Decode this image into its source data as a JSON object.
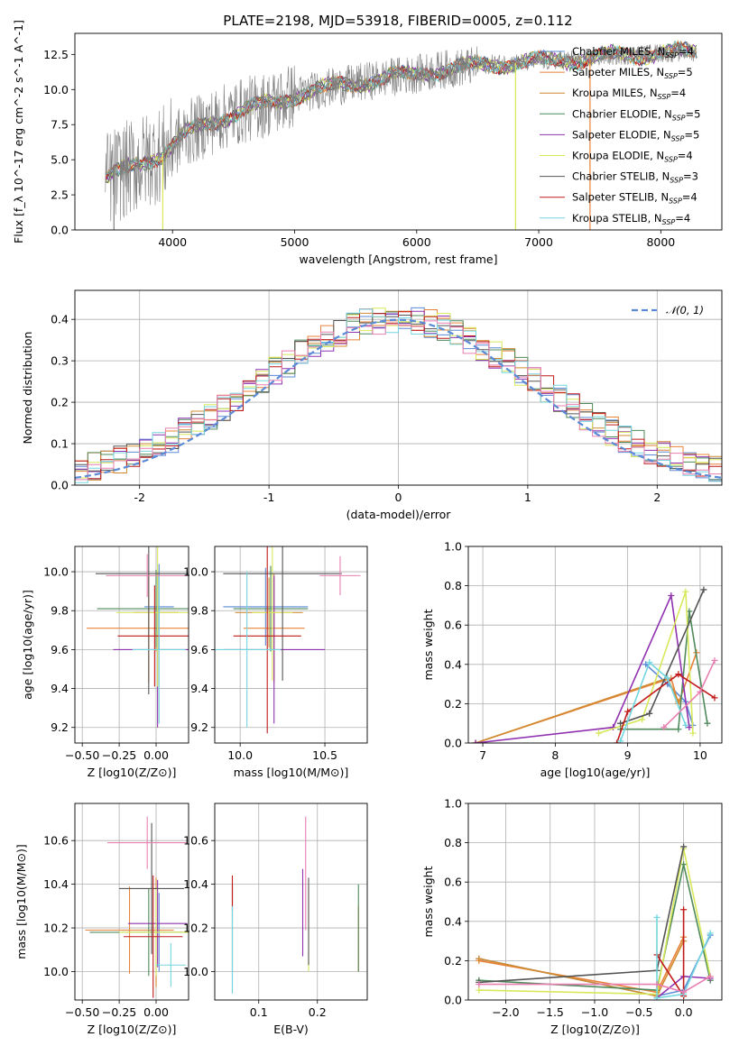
{
  "title": "PLATE=2198, MJD=53918, FIBERID=0005, z=0.112",
  "colors": {
    "Chabrier MILES": "#5b8ad6",
    "Salpeter MILES": "#e8833a",
    "Kroupa MILES": "#d08a30",
    "Chabrier ELODIE": "#4f8a5b",
    "Salpeter ELODIE": "#9032b0",
    "Kroupa ELODIE": "#d7e85a",
    "Chabrier STELIB": "#555555",
    "Salpeter STELIB": "#c01a1a",
    "Kroupa STELIB": "#73d6e0",
    "extra": "#e87fb0",
    "spectrum": "#808080",
    "normal": "#5b8ad6"
  },
  "chart_data": [
    {
      "type": "line",
      "name": "spectrum",
      "xlabel": "wavelength [Angstrom, rest frame]",
      "ylabel": "Flux [f_λ 10^-17 erg cm^-2 s^-1 A^-1]",
      "xlim": [
        3200,
        8500
      ],
      "ylim": [
        0,
        14
      ],
      "xticks": [
        4000,
        5000,
        6000,
        7000,
        8000
      ],
      "yticks": [
        0.0,
        2.5,
        5.0,
        7.5,
        10.0,
        12.5
      ],
      "ytick_labels": [
        "0.0",
        "2.5",
        "5.0",
        "7.5",
        "10.0",
        "12.5"
      ],
      "legend_position": "top-right",
      "legend": [
        {
          "label": "Chabrier MILES, N",
          "sub": "SSP",
          "tail": "=4",
          "key": "Chabrier MILES"
        },
        {
          "label": "Salpeter MILES, N",
          "sub": "SSP",
          "tail": "=5",
          "key": "Salpeter MILES"
        },
        {
          "label": "Kroupa MILES, N",
          "sub": "SSP",
          "tail": "=4",
          "key": "Kroupa MILES"
        },
        {
          "label": "Chabrier ELODIE, N",
          "sub": "SSP",
          "tail": "=5",
          "key": "Chabrier ELODIE"
        },
        {
          "label": "Salpeter ELODIE, N",
          "sub": "SSP",
          "tail": "=5",
          "key": "Salpeter ELODIE"
        },
        {
          "label": "Kroupa ELODIE, N",
          "sub": "SSP",
          "tail": "=4",
          "key": "Kroupa ELODIE"
        },
        {
          "label": "Chabrier STELIB, N",
          "sub": "SSP",
          "tail": "=3",
          "key": "Chabrier STELIB"
        },
        {
          "label": "Salpeter STELIB, N",
          "sub": "SSP",
          "tail": "=4",
          "key": "Salpeter STELIB"
        },
        {
          "label": "Kroupa STELIB, N",
          "sub": "SSP",
          "tail": "=4",
          "key": "Kroupa STELIB"
        }
      ],
      "continuum": [
        [
          3450,
          3.6
        ],
        [
          3600,
          4.2
        ],
        [
          3800,
          5.0
        ],
        [
          3950,
          5.6
        ],
        [
          4100,
          6.8
        ],
        [
          4300,
          7.6
        ],
        [
          4500,
          8.3
        ],
        [
          4700,
          8.8
        ],
        [
          4860,
          9.1
        ],
        [
          5000,
          9.6
        ],
        [
          5200,
          10.0
        ],
        [
          5400,
          10.3
        ],
        [
          5600,
          10.6
        ],
        [
          5800,
          10.9
        ],
        [
          6000,
          11.1
        ],
        [
          6200,
          11.4
        ],
        [
          6400,
          11.6
        ],
        [
          6600,
          11.8
        ],
        [
          6800,
          11.9
        ],
        [
          7000,
          12.0
        ],
        [
          7200,
          12.1
        ],
        [
          7400,
          12.2
        ],
        [
          7600,
          12.4
        ],
        [
          7800,
          12.5
        ],
        [
          8000,
          12.6
        ],
        [
          8300,
          12.7
        ]
      ]
    },
    {
      "type": "line",
      "name": "residuals",
      "xlabel": "(data-model)/error",
      "ylabel": "Normed distribution",
      "xlim": [
        -2.5,
        2.5
      ],
      "ylim": [
        0,
        0.47
      ],
      "xticks": [
        -2,
        -1,
        0,
        1,
        2
      ],
      "yticks": [
        0.0,
        0.1,
        0.2,
        0.3,
        0.4
      ],
      "ytick_labels": [
        "0.0",
        "0.1",
        "0.2",
        "0.3",
        "0.4"
      ],
      "legend": "𝒩(0, 1)",
      "legend_position": "top-right",
      "grid": true
    },
    {
      "type": "scatter",
      "name": "age vs Z",
      "xlabel": "Z [log10(Z/Z⊙)]",
      "ylabel": "age [log10(age/yr)]",
      "xlim": [
        -0.55,
        0.22
      ],
      "ylim": [
        9.12,
        10.13
      ],
      "xticks": [
        -0.5,
        -0.25,
        0.0
      ],
      "xtick_labels": [
        "−0.50",
        "−0.25",
        "0.00"
      ],
      "yticks": [
        9.2,
        9.4,
        9.6,
        9.8,
        10.0
      ],
      "ytick_labels": [
        "9.2",
        "9.4",
        "9.6",
        "9.8",
        "10.0"
      ],
      "grid": true,
      "points": [
        {
          "m": "Chabrier MILES",
          "x": 0.02,
          "y": 9.82,
          "xe": 0.1,
          "ye": 0.22
        },
        {
          "m": "Salpeter MILES",
          "x": -0.05,
          "y": 9.71,
          "xe": 0.42,
          "ye": 0.28
        },
        {
          "m": "Kroupa MILES",
          "x": 0.0,
          "y": 9.79,
          "xe": 0.15,
          "ye": 0.2
        },
        {
          "m": "Chabrier ELODIE",
          "x": 0.0,
          "y": 9.81,
          "xe": 0.4,
          "ye": 0.2
        },
        {
          "m": "Salpeter ELODIE",
          "x": 0.01,
          "y": 9.6,
          "xe": 0.3,
          "ye": 0.4
        },
        {
          "m": "Kroupa ELODIE",
          "x": 0.01,
          "y": 9.79,
          "xe": 0.28,
          "ye": 0.38
        },
        {
          "m": "Chabrier STELIB",
          "x": -0.05,
          "y": 9.99,
          "xe": 0.36,
          "ye": 0.62
        },
        {
          "m": "Salpeter STELIB",
          "x": -0.01,
          "y": 9.67,
          "xe": 0.25,
          "ye": 0.26
        },
        {
          "m": "Kroupa STELIB",
          "x": 0.02,
          "y": 9.6,
          "xe": 0.18,
          "ye": 0.38
        },
        {
          "m": "extra",
          "x": -0.06,
          "y": 9.98,
          "xe": 0.28,
          "ye": 0.11
        }
      ]
    },
    {
      "type": "scatter",
      "name": "age vs mass",
      "xlabel": "mass [log10(M/M⊙)]",
      "ylabel": "",
      "xlim": [
        9.85,
        10.75
      ],
      "ylim": [
        9.12,
        10.13
      ],
      "xticks": [
        10.0,
        10.5
      ],
      "xtick_labels": [
        "10.0",
        "10.5"
      ],
      "yticks": [
        9.2,
        9.4,
        9.6,
        9.8,
        10.0
      ],
      "ytick_labels": [
        "9.2",
        "9.4",
        "9.6",
        "9.8",
        "10.0"
      ],
      "grid": true,
      "points": [
        {
          "m": "Chabrier MILES",
          "x": 10.15,
          "y": 9.82,
          "xe": 0.25,
          "ye": 0.2
        },
        {
          "m": "Salpeter MILES",
          "x": 10.2,
          "y": 9.71,
          "xe": 0.18,
          "ye": 0.28
        },
        {
          "m": "Kroupa MILES",
          "x": 10.17,
          "y": 9.79,
          "xe": 0.2,
          "ye": 0.18
        },
        {
          "m": "Chabrier ELODIE",
          "x": 10.18,
          "y": 9.81,
          "xe": 0.22,
          "ye": 0.22
        },
        {
          "m": "Salpeter ELODIE",
          "x": 10.2,
          "y": 9.6,
          "xe": 0.3,
          "ye": 0.38
        },
        {
          "m": "Kroupa ELODIE",
          "x": 10.19,
          "y": 9.79,
          "xe": 0.12,
          "ye": 0.35
        },
        {
          "m": "Chabrier STELIB",
          "x": 10.25,
          "y": 9.99,
          "xe": 0.35,
          "ye": 0.55
        },
        {
          "m": "Salpeter STELIB",
          "x": 10.16,
          "y": 9.67,
          "xe": 0.2,
          "ye": 0.5
        },
        {
          "m": "Kroupa STELIB",
          "x": 10.04,
          "y": 9.6,
          "xe": 0.2,
          "ye": 0.4
        },
        {
          "m": "extra",
          "x": 10.59,
          "y": 9.98,
          "xe": 0.12,
          "ye": 0.1
        }
      ]
    },
    {
      "type": "line",
      "name": "mass weight vs age",
      "xlabel": "age [log10(age/yr)]",
      "ylabel": "mass weight",
      "xlim": [
        6.8,
        10.3
      ],
      "ylim": [
        0,
        1.0
      ],
      "xticks": [
        7,
        8,
        9,
        10
      ],
      "xtick_labels": [
        "7",
        "8",
        "9",
        "10"
      ],
      "yticks": [
        0.0,
        0.2,
        0.4,
        0.6,
        0.8,
        1.0
      ],
      "ytick_labels": [
        "0.0",
        "0.2",
        "0.4",
        "0.6",
        "0.8",
        "1.0"
      ],
      "grid": true,
      "series": [
        {
          "m": "Chabrier MILES",
          "x": [
            9.25,
            9.55,
            9.8,
            9.9
          ],
          "y": [
            0.4,
            0.3,
            0.21,
            0.09
          ]
        },
        {
          "m": "Salpeter MILES",
          "x": [
            6.9,
            9.6,
            9.7,
            9.95
          ],
          "y": [
            0.0,
            0.33,
            0.2,
            0.46
          ]
        },
        {
          "m": "Kroupa MILES",
          "x": [
            6.9,
            9.55,
            9.7
          ],
          "y": [
            0.0,
            0.33,
            0.21
          ]
        },
        {
          "m": "Chabrier ELODIE",
          "x": [
            8.9,
            9.7,
            9.85,
            10.1
          ],
          "y": [
            0.07,
            0.07,
            0.67,
            0.1
          ]
        },
        {
          "m": "Salpeter ELODIE",
          "x": [
            6.9,
            8.8,
            9.6,
            9.85
          ],
          "y": [
            0.0,
            0.08,
            0.75,
            0.08
          ]
        },
        {
          "m": "Kroupa ELODIE",
          "x": [
            8.6,
            9.2,
            9.8,
            9.9
          ],
          "y": [
            0.05,
            0.12,
            0.77,
            0.05
          ]
        },
        {
          "m": "Chabrier STELIB",
          "x": [
            8.9,
            9.3,
            10.05
          ],
          "y": [
            0.1,
            0.15,
            0.78
          ]
        },
        {
          "m": "Salpeter STELIB",
          "x": [
            8.85,
            9.0,
            9.7,
            10.2
          ],
          "y": [
            0.0,
            0.16,
            0.35,
            0.23
          ]
        },
        {
          "m": "Kroupa STELIB",
          "x": [
            8.9,
            9.3,
            9.55,
            9.8
          ],
          "y": [
            0.01,
            0.41,
            0.33,
            0.09
          ]
        },
        {
          "m": "extra",
          "x": [
            9.5,
            10.0,
            10.2
          ],
          "y": [
            0.08,
            0.26,
            0.42
          ]
        }
      ]
    },
    {
      "type": "scatter",
      "name": "mass vs Z",
      "xlabel": "Z [log10(Z/Z⊙)]",
      "ylabel": "mass [log10(M/M⊙)]",
      "xlim": [
        -0.55,
        0.22
      ],
      "ylim": [
        9.87,
        10.77
      ],
      "xticks": [
        -0.5,
        -0.25,
        0.0
      ],
      "xtick_labels": [
        "−0.50",
        "−0.25",
        "0.00"
      ],
      "yticks": [
        10.0,
        10.2,
        10.4,
        10.6
      ],
      "ytick_labels": [
        "10.0",
        "10.2",
        "10.4",
        "10.6"
      ],
      "grid": true,
      "points": [
        {
          "m": "Chabrier MILES",
          "x": 0.02,
          "y": 10.18,
          "xe": 0.1,
          "ye": 0.18
        },
        {
          "m": "Salpeter MILES",
          "x": -0.18,
          "y": 10.19,
          "xe": 0.3,
          "ye": 0.2
        },
        {
          "m": "Kroupa MILES",
          "x": 0.0,
          "y": 10.18,
          "xe": 0.2,
          "ye": 0.25
        },
        {
          "m": "Chabrier ELODIE",
          "x": -0.05,
          "y": 10.18,
          "xe": 0.4,
          "ye": 0.2
        },
        {
          "m": "Salpeter ELODIE",
          "x": 0.01,
          "y": 10.22,
          "xe": 0.2,
          "ye": 0.2
        },
        {
          "m": "Kroupa ELODIE",
          "x": 0.0,
          "y": 10.18,
          "xe": 0.25,
          "ye": 0.2
        },
        {
          "m": "Chabrier STELIB",
          "x": -0.03,
          "y": 10.38,
          "xe": 0.22,
          "ye": 0.3
        },
        {
          "m": "Salpeter STELIB",
          "x": -0.02,
          "y": 10.16,
          "xe": 0.2,
          "ye": 0.28
        },
        {
          "m": "Kroupa STELIB",
          "x": 0.1,
          "y": 10.03,
          "xe": 0.1,
          "ye": 0.1
        },
        {
          "m": "extra",
          "x": -0.06,
          "y": 10.59,
          "xe": 0.27,
          "ye": 0.12
        }
      ]
    },
    {
      "type": "scatter",
      "name": "mass vs E(B-V)",
      "xlabel": "E(B-V)",
      "ylabel": "",
      "xlim": [
        0.025,
        0.285
      ],
      "ylim": [
        9.87,
        10.77
      ],
      "xticks": [
        0.1,
        0.2
      ],
      "xtick_labels": [
        "0.1",
        "0.2"
      ],
      "yticks": [
        10.0,
        10.2,
        10.4,
        10.6
      ],
      "ytick_labels": [
        "10.0",
        "10.2",
        "10.4",
        "10.6"
      ],
      "grid": true,
      "points": [
        {
          "m": "Chabrier MILES",
          "x": 0.055,
          "y": 10.15,
          "xe": 0,
          "ye": 0.25
        },
        {
          "m": "Salpeter MILES",
          "x": 0.27,
          "y": 10.15,
          "xe": 0,
          "ye": 0.15
        },
        {
          "m": "Kroupa MILES",
          "x": 0.055,
          "y": 10.2,
          "xe": 0,
          "ye": 0.2
        },
        {
          "m": "Chabrier ELODIE",
          "x": 0.27,
          "y": 10.2,
          "xe": 0,
          "ye": 0.2
        },
        {
          "m": "Salpeter ELODIE",
          "x": 0.175,
          "y": 10.27,
          "xe": 0,
          "ye": 0.2
        },
        {
          "m": "Kroupa ELODIE",
          "x": 0.185,
          "y": 10.2,
          "xe": 0,
          "ye": 0.2
        },
        {
          "m": "Chabrier STELIB",
          "x": 0.185,
          "y": 10.23,
          "xe": 0,
          "ye": 0.2
        },
        {
          "m": "Salpeter STELIB",
          "x": 0.055,
          "y": 10.36,
          "xe": 0,
          "ye": 0.08
        },
        {
          "m": "Kroupa STELIB",
          "x": 0.055,
          "y": 10.1,
          "xe": 0,
          "ye": 0.2
        },
        {
          "m": "extra",
          "x": 0.18,
          "y": 10.45,
          "xe": 0,
          "ye": 0.26
        }
      ]
    },
    {
      "type": "line",
      "name": "mass weight vs Z",
      "xlabel": "Z [log10(Z/Z⊙)]",
      "ylabel": "mass weight",
      "xlim": [
        -2.42,
        0.43
      ],
      "ylim": [
        0,
        1.0
      ],
      "xticks": [
        -2.0,
        -1.5,
        -1.0,
        -0.5,
        0.0
      ],
      "xtick_labels": [
        "−2.0",
        "−1.5",
        "−1.0",
        "−0.5",
        "0.0"
      ],
      "yticks": [
        0.0,
        0.2,
        0.4,
        0.6,
        0.8,
        1.0
      ],
      "ytick_labels": [
        "0.0",
        "0.2",
        "0.4",
        "0.6",
        "0.8",
        "1.0"
      ],
      "grid": true,
      "series": [
        {
          "m": "Chabrier MILES",
          "x": [
            -2.3,
            -0.3,
            0.0,
            0.3
          ],
          "y": [
            0.21,
            0.02,
            0.05,
            0.33
          ]
        },
        {
          "m": "Salpeter MILES",
          "x": [
            -2.3,
            -0.3,
            0.0
          ],
          "y": [
            0.2,
            0.04,
            0.32
          ]
        },
        {
          "m": "Kroupa MILES",
          "x": [
            -2.3,
            -0.3,
            0.0
          ],
          "y": [
            0.21,
            0.02,
            0.3
          ]
        },
        {
          "m": "Chabrier ELODIE",
          "x": [
            -2.3,
            -0.3,
            0.0,
            0.3
          ],
          "y": [
            0.1,
            0.05,
            0.69,
            0.1
          ]
        },
        {
          "m": "Salpeter ELODIE",
          "x": [
            -0.3,
            0.0,
            0.3
          ],
          "y": [
            0.01,
            0.12,
            0.11
          ]
        },
        {
          "m": "Kroupa ELODIE",
          "x": [
            -2.3,
            -0.3,
            0.0,
            0.3
          ],
          "y": [
            0.05,
            0.03,
            0.77,
            0.12
          ]
        },
        {
          "m": "Chabrier STELIB",
          "x": [
            -2.3,
            -0.3,
            0.0
          ],
          "y": [
            0.09,
            0.15,
            0.78
          ]
        },
        {
          "m": "Salpeter STELIB",
          "x": [
            -0.3,
            0.0,
            0.0
          ],
          "y": [
            0.23,
            0.02,
            0.46
          ]
        },
        {
          "m": "Kroupa STELIB",
          "x": [
            -0.3,
            -0.3,
            0.0,
            0.3
          ],
          "y": [
            0.42,
            0.01,
            0.03,
            0.34
          ]
        },
        {
          "m": "extra",
          "x": [
            -2.3,
            -0.3,
            0.0,
            0.3
          ],
          "y": [
            0.08,
            0.08,
            0.04,
            0.12
          ]
        }
      ]
    }
  ]
}
